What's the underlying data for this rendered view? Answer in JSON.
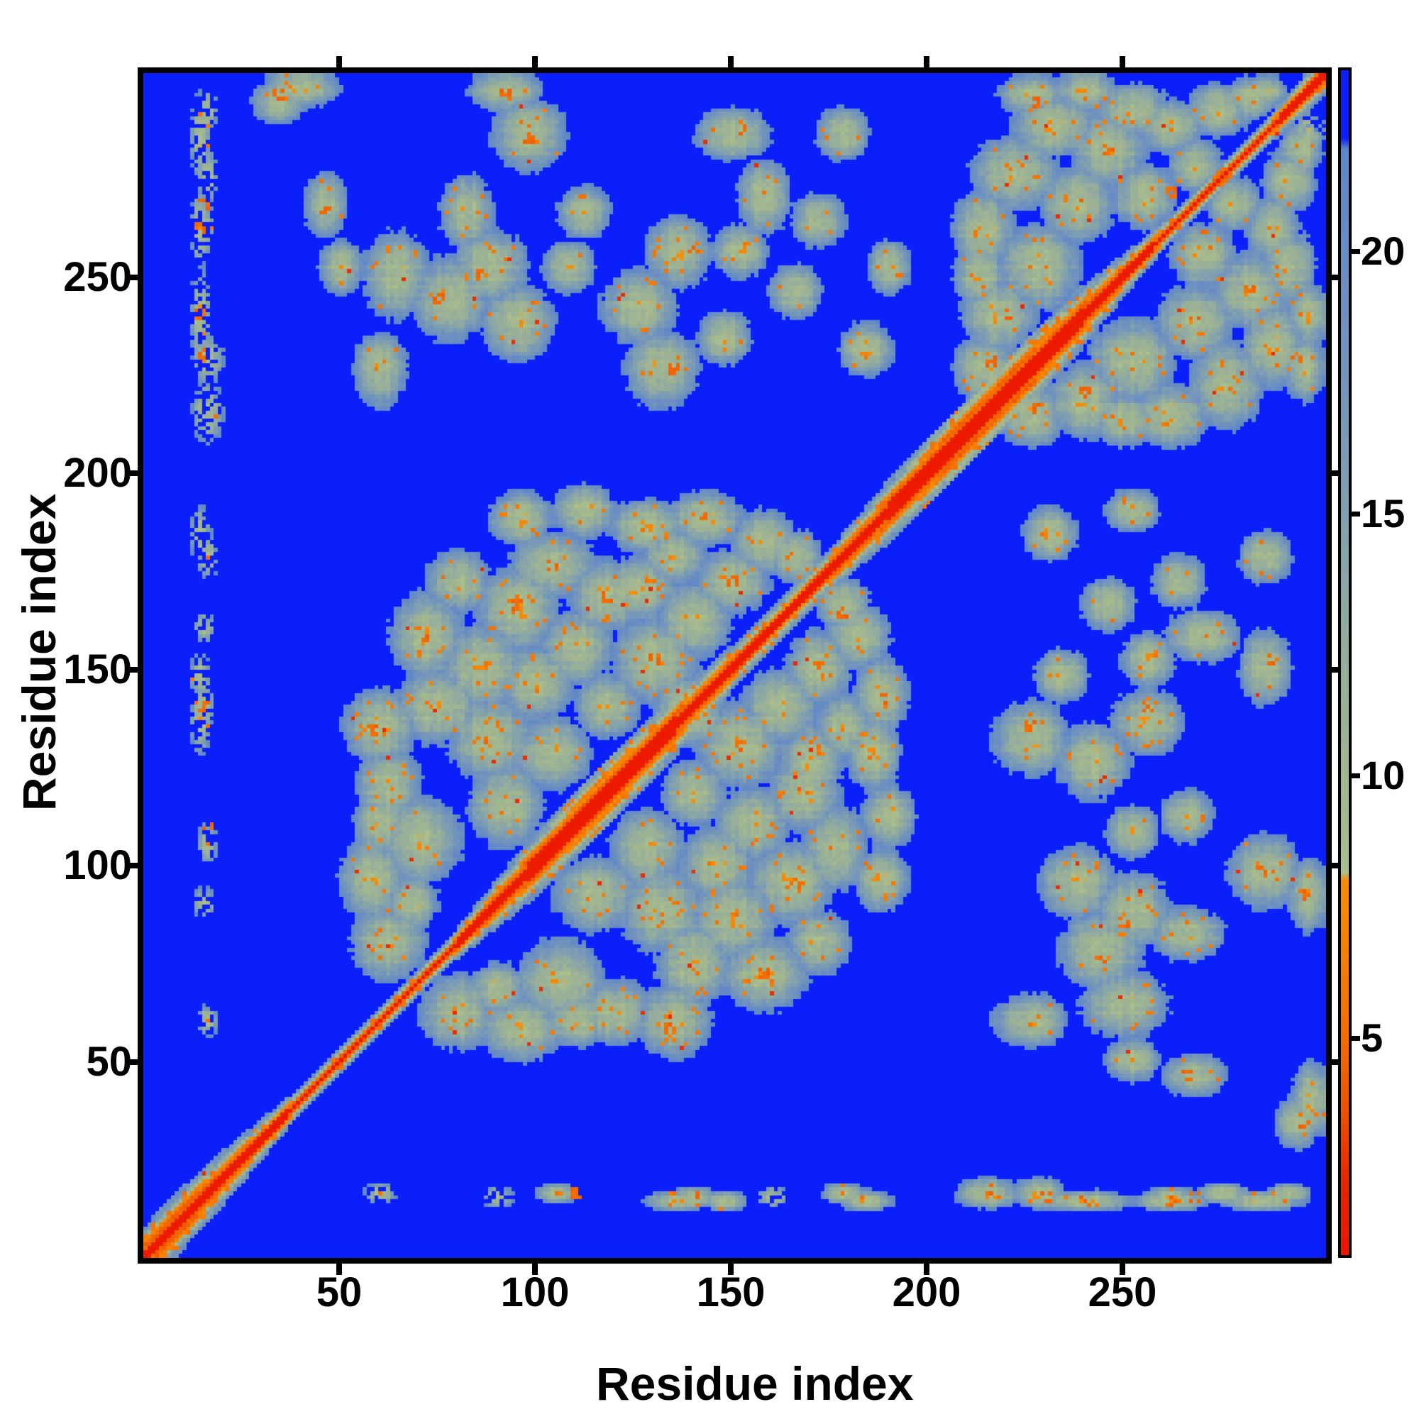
{
  "figure": {
    "background": "#ffffff",
    "frame_color": "#000000"
  },
  "chart_data": {
    "type": "heatmap",
    "title": "",
    "xlabel": "Residue index",
    "ylabel": "Residue index",
    "x_range": [
      0,
      302
    ],
    "y_range": [
      0,
      302
    ],
    "x_ticks": [
      50,
      100,
      150,
      200,
      250
    ],
    "y_ticks": [
      50,
      100,
      150,
      200,
      250
    ],
    "grid": false,
    "far_color": "#0a1ffa",
    "colorbar": {
      "position": "right",
      "vmin": 0.8,
      "vmax": 23.4,
      "ticks": [
        5,
        10,
        15,
        20
      ],
      "stops": [
        {
          "v": 23.4,
          "color": "#0a1ffa"
        },
        {
          "v": 22.1,
          "color": "#0a1ffa"
        },
        {
          "v": 21.9,
          "color": "#5e86c9"
        },
        {
          "v": 18.0,
          "color": "#7193bd"
        },
        {
          "v": 15.0,
          "color": "#81a0af"
        },
        {
          "v": 12.0,
          "color": "#96ae9b"
        },
        {
          "v": 10.0,
          "color": "#a1b591"
        },
        {
          "v": 8.1,
          "color": "#abbe8c"
        },
        {
          "v": 7.95,
          "color": "#f68d06"
        },
        {
          "v": 6.5,
          "color": "#f67f04"
        },
        {
          "v": 5.0,
          "color": "#f36d01"
        },
        {
          "v": 3.5,
          "color": "#ef5000"
        },
        {
          "v": 2.2,
          "color": "#ea2500"
        },
        {
          "v": 0.8,
          "color": "#ee1400"
        }
      ]
    },
    "matrix": {
      "resolution": 302,
      "symmetric": true,
      "diagonal_value": 1.1,
      "diagonal_band_halfwidth_residues": 5,
      "clusters": [
        [
          62,
          80,
          7,
          7
        ],
        [
          58,
          96,
          6,
          8
        ],
        [
          70,
          106,
          8,
          8
        ],
        [
          62,
          120,
          6,
          7
        ],
        [
          60,
          135,
          7,
          7
        ],
        [
          75,
          140,
          8,
          7
        ],
        [
          88,
          132,
          8,
          8
        ],
        [
          72,
          158,
          7,
          8
        ],
        [
          86,
          150,
          8,
          8
        ],
        [
          95,
          165,
          8,
          8
        ],
        [
          80,
          172,
          6,
          6
        ],
        [
          104,
          176,
          8,
          6
        ],
        [
          118,
          168,
          7,
          7
        ],
        [
          100,
          146,
          7,
          7
        ],
        [
          110,
          155,
          7,
          7
        ],
        [
          92,
          115,
          7,
          8
        ],
        [
          104,
          128,
          7,
          7
        ],
        [
          130,
          152,
          8,
          8
        ],
        [
          138,
          140,
          6,
          6
        ],
        [
          126,
          170,
          7,
          6
        ],
        [
          140,
          162,
          7,
          7
        ],
        [
          150,
          172,
          7,
          6
        ],
        [
          158,
          182,
          6,
          6
        ],
        [
          143,
          188,
          7,
          5
        ],
        [
          128,
          186,
          7,
          5
        ],
        [
          112,
          190,
          6,
          5
        ],
        [
          96,
          188,
          6,
          5
        ],
        [
          166,
          178,
          5,
          5
        ],
        [
          60,
          110,
          5,
          6
        ],
        [
          118,
          140,
          6,
          6
        ],
        [
          135,
          178,
          6,
          5
        ],
        [
          68,
          90,
          5,
          5
        ],
        [
          214,
          226,
          6,
          6
        ],
        [
          218,
          240,
          7,
          7
        ],
        [
          228,
          252,
          8,
          8
        ],
        [
          214,
          262,
          6,
          7
        ],
        [
          222,
          276,
          8,
          7
        ],
        [
          238,
          268,
          7,
          7
        ],
        [
          232,
          288,
          8,
          6
        ],
        [
          246,
          282,
          7,
          7
        ],
        [
          255,
          270,
          6,
          6
        ],
        [
          252,
          292,
          7,
          5
        ],
        [
          262,
          288,
          6,
          5
        ],
        [
          268,
          278,
          5,
          5
        ],
        [
          274,
          292,
          6,
          5
        ],
        [
          282,
          295,
          5,
          4
        ],
        [
          213,
          250,
          5,
          6
        ],
        [
          226,
          296,
          6,
          4
        ],
        [
          240,
          297,
          6,
          4
        ],
        [
          286,
          297,
          4,
          3
        ],
        [
          60,
          226,
          5,
          7
        ],
        [
          64,
          250,
          6,
          8
        ],
        [
          78,
          244,
          7,
          8
        ],
        [
          88,
          252,
          7,
          7
        ],
        [
          95,
          238,
          7,
          7
        ],
        [
          82,
          266,
          5,
          7
        ],
        [
          98,
          286,
          7,
          7
        ],
        [
          92,
          297,
          7,
          4
        ],
        [
          108,
          252,
          5,
          5
        ],
        [
          112,
          266,
          5,
          5
        ],
        [
          126,
          242,
          7,
          7
        ],
        [
          136,
          256,
          6,
          7
        ],
        [
          132,
          226,
          7,
          7
        ],
        [
          148,
          234,
          5,
          5
        ],
        [
          152,
          256,
          5,
          5
        ],
        [
          158,
          270,
          5,
          7
        ],
        [
          150,
          286,
          7,
          5
        ],
        [
          166,
          246,
          5,
          5
        ],
        [
          172,
          264,
          5,
          5
        ],
        [
          178,
          286,
          5,
          5
        ],
        [
          184,
          231,
          5,
          5
        ],
        [
          190,
          252,
          4,
          5
        ],
        [
          40,
          298,
          7,
          4
        ],
        [
          34,
          294,
          5,
          4
        ],
        [
          46,
          268,
          4,
          6
        ],
        [
          50,
          252,
          4,
          5
        ],
        [
          14,
          240,
          2,
          9
        ],
        [
          14,
          262,
          2,
          7
        ],
        [
          14,
          285,
          2,
          8
        ],
        [
          14,
          184,
          2,
          5
        ],
        [
          14,
          136,
          2,
          6
        ],
        [
          14,
          148,
          2,
          4
        ],
        [
          60,
          16,
          3,
          2
        ],
        [
          90,
          15,
          3,
          2
        ],
        [
          105,
          16,
          4,
          2
        ],
        [
          140,
          15,
          4,
          2
        ],
        [
          160,
          15,
          3,
          2
        ],
        [
          178,
          16,
          4,
          2
        ],
        [
          215,
          16,
          6,
          3
        ],
        [
          228,
          16,
          5,
          3
        ],
        [
          262,
          15,
          5,
          2
        ],
        [
          275,
          16,
          5,
          2
        ],
        [
          292,
          16,
          4,
          2
        ]
      ],
      "hot_spots": [
        [
          85,
          250
        ],
        [
          140,
          256
        ],
        [
          228,
          294
        ],
        [
          262,
          271
        ],
        [
          220,
          240
        ],
        [
          92,
          296
        ],
        [
          75,
          244
        ],
        [
          135,
          226
        ],
        [
          98,
          285
        ],
        [
          152,
          287
        ],
        [
          240,
          268
        ],
        [
          216,
          228
        ],
        [
          246,
          282
        ],
        [
          14,
          262
        ],
        [
          14,
          240
        ],
        [
          110,
          16
        ],
        [
          140,
          15
        ],
        [
          215,
          17
        ],
        [
          268,
          15
        ],
        [
          230,
          15
        ],
        [
          58,
          134
        ],
        [
          88,
          132
        ],
        [
          72,
          158
        ],
        [
          95,
          166
        ],
        [
          130,
          152
        ],
        [
          150,
          172
        ],
        [
          104,
          176
        ],
        [
          118,
          168
        ],
        [
          142,
          188
        ],
        [
          164,
          178
        ],
        [
          34,
          296
        ],
        [
          46,
          266
        ]
      ]
    }
  }
}
